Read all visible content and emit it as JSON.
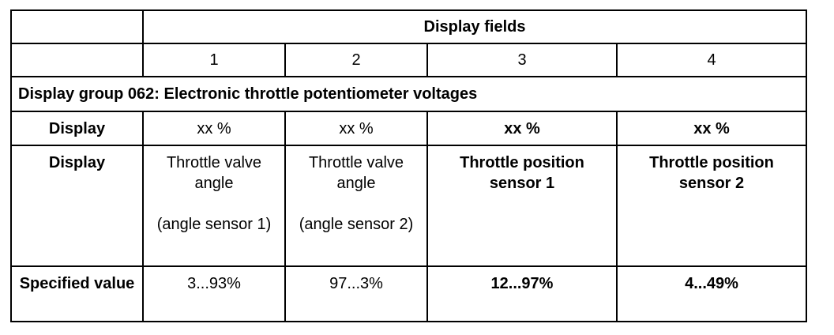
{
  "table": {
    "header": {
      "title": "Display fields",
      "fields": [
        "1",
        "2",
        "3",
        "4"
      ]
    },
    "group": "Display group 062: Electronic throttle potentiometer voltages",
    "rows": [
      {
        "label": "Display",
        "cells": [
          [
            "xx %"
          ],
          [
            "xx %"
          ],
          [
            "xx %"
          ],
          [
            "xx %"
          ]
        ]
      },
      {
        "label": "Display",
        "cells": [
          [
            "Throttle valve angle",
            "(angle sensor 1)"
          ],
          [
            "Throttle valve angle",
            "(angle sensor 2)"
          ],
          [
            "Throttle position sensor 1"
          ],
          [
            "Throttle position sensor 2"
          ]
        ]
      },
      {
        "label": "Specified value",
        "cells": [
          [
            "3...93%"
          ],
          [
            "97...3%"
          ],
          [
            "12...97%"
          ],
          [
            "4...49%"
          ]
        ]
      }
    ]
  }
}
